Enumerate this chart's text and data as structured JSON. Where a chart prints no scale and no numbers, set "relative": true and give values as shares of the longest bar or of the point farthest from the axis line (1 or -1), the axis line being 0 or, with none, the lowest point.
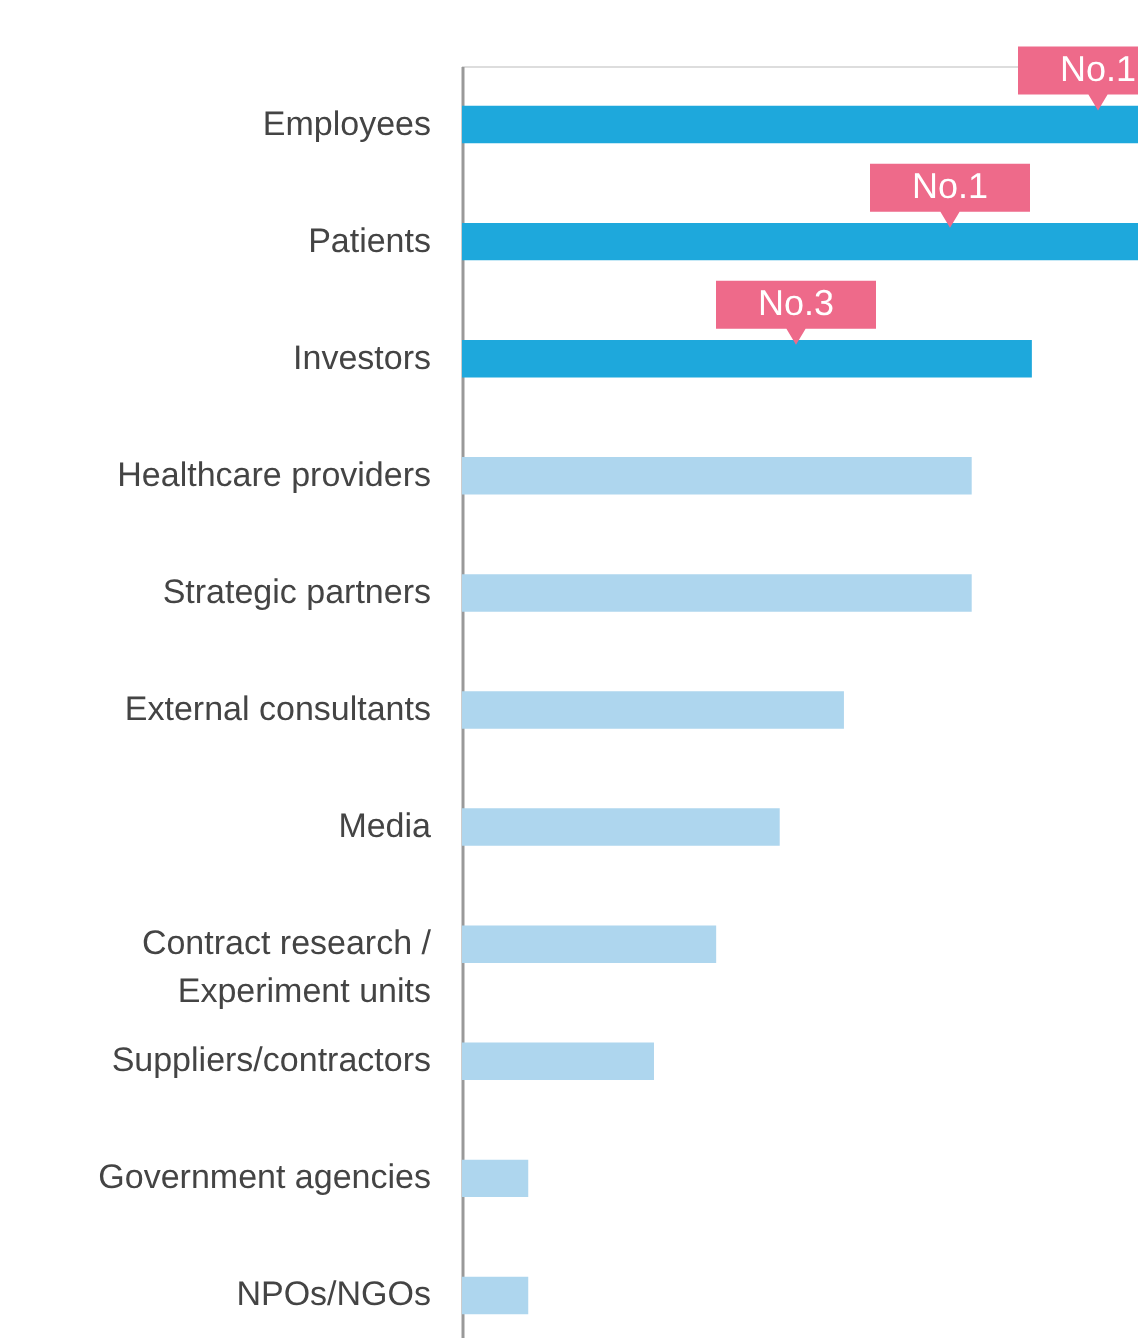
{
  "chart_data": {
    "type": "bar",
    "orientation": "horizontal",
    "relative": true,
    "categories": [
      "Employees",
      "Patients",
      "Investors",
      "Healthcare providers",
      "Strategic partners",
      "External consultants",
      "Media",
      "Contract research /\nExperiment units",
      "Suppliers/contractors",
      "Government agencies",
      "NPOs/NGOs"
    ],
    "values": [
      1,
      1,
      0.843,
      0.754,
      0.754,
      0.565,
      0.47,
      0.376,
      0.284,
      0.098,
      0.098
    ],
    "colors": [
      "#1ea8dc",
      "#1ea8dc",
      "#1ea8dc",
      "#aed6ee",
      "#aed6ee",
      "#aed6ee",
      "#aed6ee",
      "#aed6ee",
      "#aed6ee",
      "#aed6ee",
      "#aed6ee"
    ],
    "annotations": [
      "No.1",
      "No.1",
      "No.3"
    ]
  }
}
